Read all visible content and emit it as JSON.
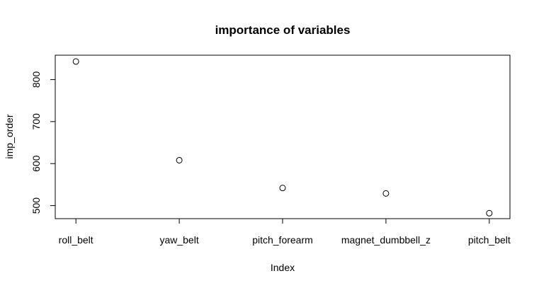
{
  "chart_data": {
    "type": "scatter",
    "title": "importance of variables",
    "xlabel": "Index",
    "ylabel": "imp_order",
    "categories": [
      "roll_belt",
      "yaw_belt",
      "pitch_forearm",
      "magnet_dumbbell_z",
      "pitch_belt"
    ],
    "x": [
      1,
      2,
      3,
      4,
      5
    ],
    "y": [
      843,
      608,
      542,
      529,
      482
    ],
    "xlim": [
      0.8,
      5.2
    ],
    "ylim": [
      469,
      858
    ],
    "yticks": [
      500,
      600,
      700,
      800
    ],
    "marker": "open-circle",
    "grid": false,
    "legend": "none"
  },
  "colors": {
    "points": "#000000",
    "axes": "#000000",
    "background": "#ffffff"
  }
}
